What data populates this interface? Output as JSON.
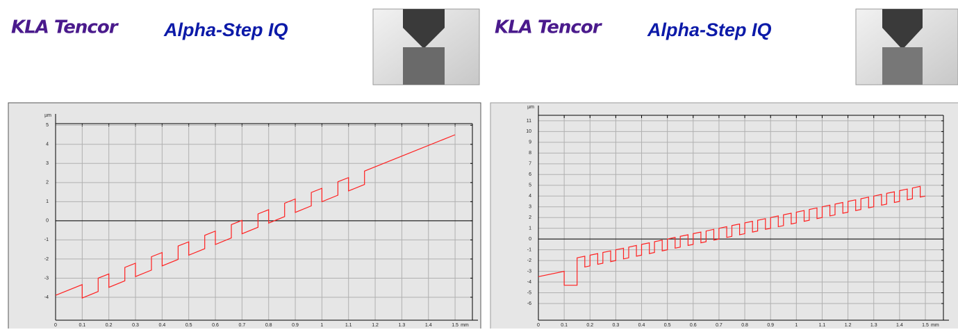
{
  "headers": [
    {
      "brand": "KLA Tencor",
      "product": "Alpha-Step IQ"
    },
    {
      "brand": "KLA Tencor",
      "product": "Alpha-Step IQ"
    }
  ],
  "chart_data": [
    {
      "type": "line",
      "y_label": "µm",
      "x_label": "mm",
      "color": "#ff2020",
      "grid": true,
      "xlim": [
        0,
        1.565
      ],
      "ylim": [
        -5.2,
        5.3
      ],
      "xticks": [
        0,
        0.1,
        0.2,
        0.3,
        0.4,
        0.5,
        0.6,
        0.7,
        0.8,
        0.9,
        1,
        1.1,
        1.2,
        1.3,
        1.4,
        1.5
      ],
      "yticks": [
        -4,
        -3,
        -2,
        -1,
        0,
        1,
        2,
        3,
        4,
        5
      ],
      "x": [
        0,
        0.1,
        0.1,
        0.16,
        0.16,
        0.2,
        0.2,
        0.26,
        0.26,
        0.3,
        0.3,
        0.36,
        0.36,
        0.4,
        0.4,
        0.46,
        0.46,
        0.5,
        0.5,
        0.56,
        0.56,
        0.6,
        0.6,
        0.66,
        0.66,
        0.7,
        0.7,
        0.76,
        0.76,
        0.8,
        0.8,
        0.86,
        0.86,
        0.9,
        0.9,
        0.96,
        0.96,
        1.0,
        1.0,
        1.06,
        1.06,
        1.1,
        1.1,
        1.16,
        1.16,
        1.5
      ],
      "values": [
        -3.9,
        -3.34,
        -4.04,
        -3.7,
        -3.0,
        -2.78,
        -3.48,
        -3.14,
        -2.44,
        -2.22,
        -2.92,
        -2.58,
        -1.88,
        -1.66,
        -2.36,
        -2.02,
        -1.32,
        -1.1,
        -1.8,
        -1.46,
        -0.76,
        -0.54,
        -1.24,
        -0.9,
        -0.2,
        0.02,
        -0.68,
        -0.34,
        0.36,
        0.58,
        -0.12,
        0.22,
        0.92,
        1.14,
        0.44,
        0.78,
        1.48,
        1.7,
        1.0,
        1.34,
        2.04,
        2.26,
        1.56,
        1.9,
        2.6,
        4.5
      ]
    },
    {
      "type": "line",
      "y_label": "µm",
      "x_label": "mm",
      "color": "#ff2020",
      "grid": true,
      "xlim": [
        0,
        1.57
      ],
      "ylim": [
        -7.55,
        11.9
      ],
      "xticks": [
        0,
        0.1,
        0.2,
        0.3,
        0.4,
        0.5,
        0.6,
        0.7,
        0.8,
        0.9,
        1,
        1.1,
        1.2,
        1.3,
        1.4,
        1.5
      ],
      "yticks": [
        -6,
        -5,
        -4,
        -3,
        -2,
        -1,
        0,
        1,
        2,
        3,
        4,
        5,
        6,
        7,
        8,
        9,
        10,
        11
      ],
      "x": [
        0,
        0.1,
        0.1,
        0.15,
        0.15,
        0.15,
        0.18,
        0.18,
        0.2,
        0.2,
        0.23,
        0.23,
        0.25,
        0.25,
        0.28,
        0.28,
        0.3,
        0.3,
        0.33,
        0.33,
        0.35,
        0.35,
        0.38,
        0.38,
        0.4,
        0.4,
        0.43,
        0.43,
        0.45,
        0.45,
        0.48,
        0.48,
        0.5,
        0.5,
        0.53,
        0.53,
        0.55,
        0.55,
        0.58,
        0.58,
        0.6,
        0.6,
        0.63,
        0.63,
        0.65,
        0.65,
        0.68,
        0.68,
        0.7,
        0.7,
        0.73,
        0.73,
        0.75,
        0.75,
        0.78,
        0.78,
        0.8,
        0.8,
        0.83,
        0.83,
        0.85,
        0.85,
        0.88,
        0.88,
        0.9,
        0.9,
        0.93,
        0.93,
        0.95,
        0.95,
        0.98,
        0.98,
        1,
        1,
        1.03,
        1.03,
        1.05,
        1.05,
        1.08,
        1.08,
        1.1,
        1.1,
        1.13,
        1.13,
        1.15,
        1.15,
        1.18,
        1.18,
        1.2,
        1.2,
        1.23,
        1.23,
        1.25,
        1.25,
        1.28,
        1.28,
        1.3,
        1.3,
        1.33,
        1.33,
        1.35,
        1.35,
        1.38,
        1.38,
        1.4,
        1.4,
        1.43,
        1.43,
        1.45,
        1.45,
        1.48,
        1.48,
        1.5
      ],
      "values": [
        -3.5,
        -3.0,
        -4.3,
        -4.3,
        -2.75,
        -1.75,
        -1.6,
        -2.6,
        -2.5,
        -1.5,
        -1.35,
        -2.35,
        -2.25,
        -1.25,
        -1.1,
        -2.1,
        -2,
        -1,
        -0.85,
        -1.85,
        -1.75,
        -0.75,
        -0.6,
        -1.6,
        -1.5,
        -0.5,
        -0.35,
        -1.35,
        -1.25,
        -0.25,
        -0.1,
        -1.1,
        -1,
        0,
        0.15,
        -0.85,
        -0.75,
        0.25,
        0.4,
        -0.6,
        -0.5,
        0.5,
        0.65,
        -0.35,
        -0.25,
        0.75,
        0.9,
        -0.1,
        0,
        1,
        1.15,
        0.15,
        0.25,
        1.25,
        1.4,
        0.4,
        0.5,
        1.5,
        1.65,
        0.65,
        0.75,
        1.75,
        1.9,
        0.9,
        1,
        2,
        2.15,
        1.15,
        1.25,
        2.25,
        2.4,
        1.4,
        1.5,
        2.5,
        2.65,
        1.65,
        1.75,
        2.75,
        2.9,
        1.9,
        2,
        3,
        3.15,
        2.15,
        2.25,
        3.25,
        3.4,
        2.4,
        2.5,
        3.5,
        3.65,
        2.65,
        2.75,
        3.75,
        3.9,
        2.9,
        3,
        4,
        4.15,
        3.15,
        3.25,
        4.25,
        4.4,
        3.4,
        3.5,
        4.5,
        4.65,
        3.65,
        3.75,
        4.75,
        4.9,
        3.9,
        4.0
      ]
    }
  ]
}
